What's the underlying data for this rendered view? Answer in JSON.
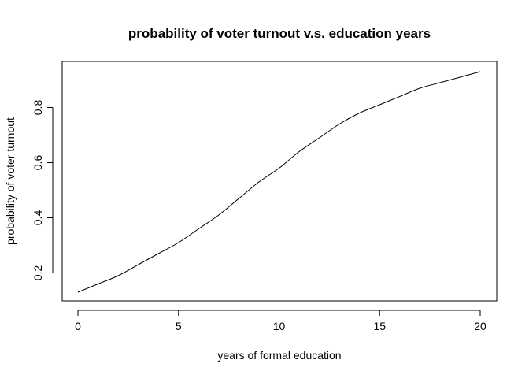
{
  "chart_data": {
    "type": "line",
    "title": "probability of voter turnout v.s. education years",
    "xlabel": "years of formal education",
    "ylabel": "probability of voter turnout",
    "xlim": [
      0,
      20
    ],
    "ylim": [
      0.13,
      0.93
    ],
    "x_ticks": [
      0,
      5,
      10,
      15,
      20
    ],
    "x_tick_labels": [
      "0",
      "5",
      "10",
      "15",
      "20"
    ],
    "y_ticks": [
      0.2,
      0.4,
      0.6,
      0.8
    ],
    "y_tick_labels": [
      "0.2",
      "0.4",
      "0.6",
      "0.8"
    ],
    "grid": false,
    "legend": "none",
    "series": [
      {
        "x": [
          0,
          1,
          2,
          3,
          4,
          5,
          6,
          7,
          8,
          9,
          10,
          11,
          12,
          13,
          14,
          15,
          16,
          17,
          18,
          19,
          20
        ],
        "values": [
          0.13,
          0.16,
          0.19,
          0.23,
          0.27,
          0.31,
          0.36,
          0.41,
          0.47,
          0.53,
          0.58,
          0.64,
          0.69,
          0.74,
          0.78,
          0.81,
          0.84,
          0.87,
          0.89,
          0.91,
          0.93
        ]
      }
    ],
    "line_color": "#000000"
  }
}
